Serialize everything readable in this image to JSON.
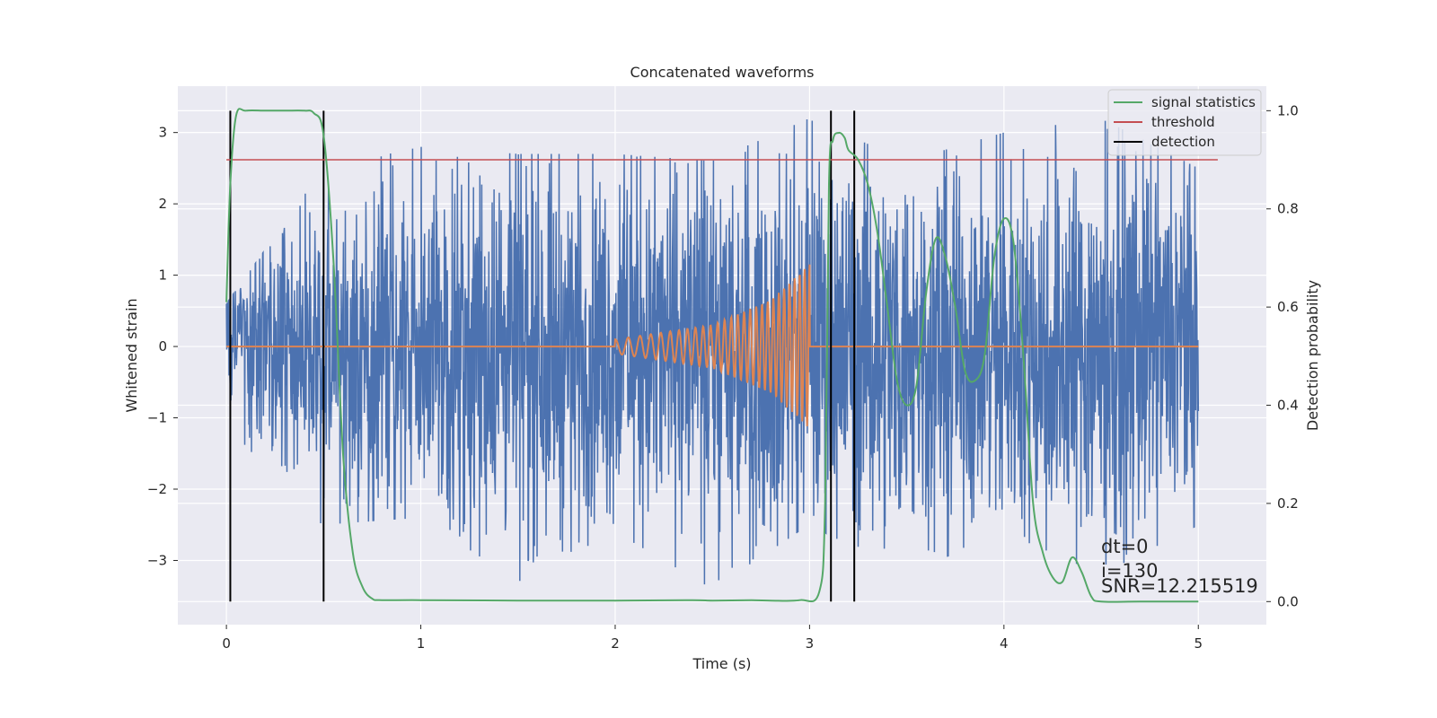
{
  "chart_data": {
    "type": "line",
    "title": "Concatenated waveforms",
    "xlabel": "Time (s)",
    "ylabel": "Whitened strain",
    "ylabel_right": "Detection probability",
    "xlim": [
      -0.25,
      5.35
    ],
    "ylim": [
      -3.9,
      3.65
    ],
    "ylim_right": [
      -0.047,
      1.05
    ],
    "xticks": [
      0,
      1,
      2,
      3,
      4,
      5
    ],
    "yticks": [
      -3,
      -2,
      -1,
      0,
      1,
      2,
      3
    ],
    "yticks_right": [
      0.0,
      0.2,
      0.4,
      0.6,
      0.8,
      1.0
    ],
    "xtick_labels": [
      "0",
      "1",
      "2",
      "3",
      "4",
      "5"
    ],
    "ytick_labels": [
      "−3",
      "−2",
      "−1",
      "0",
      "1",
      "2",
      "3"
    ],
    "ytick_right_labels": [
      "0.0",
      "0.2",
      "0.4",
      "0.6",
      "0.8",
      "1.0"
    ],
    "grid": true,
    "legend_position": "top-right",
    "legend": [
      "signal statistics",
      "threshold",
      "detection"
    ],
    "colors": {
      "noise": "#4c72b0",
      "waveform": "#dd8452",
      "signal_statistics": "#55a868",
      "threshold": "#c44e52",
      "detection": "#000000",
      "plot_bg": "#eaeaf2"
    },
    "series": [
      {
        "axis": "left",
        "kind": "noise",
        "x_range": [
          0,
          5
        ],
        "envelope": [
          {
            "x": 0.0,
            "min": -1.8,
            "max": 0.6
          },
          {
            "x": 0.5,
            "min": -2.5,
            "max": 2.5
          },
          {
            "x": 1.0,
            "min": -2.4,
            "max": 2.8
          },
          {
            "x": 1.5,
            "min": -3.3,
            "max": 2.7
          },
          {
            "x": 2.0,
            "min": -2.6,
            "max": 2.7
          },
          {
            "x": 2.5,
            "min": -3.4,
            "max": 2.6
          },
          {
            "x": 3.0,
            "min": -2.5,
            "max": 3.2
          },
          {
            "x": 3.5,
            "min": -3.2,
            "max": 2.6
          },
          {
            "x": 4.0,
            "min": -2.6,
            "max": 3.0
          },
          {
            "x": 4.5,
            "min": -3.2,
            "max": 3.2
          },
          {
            "x": 5.0,
            "min": -2.5,
            "max": 2.5
          }
        ]
      },
      {
        "axis": "left",
        "kind": "waveform",
        "x": [
          0,
          2.0,
          2.0,
          2.5,
          2.8,
          3.0,
          3.0,
          5.0
        ],
        "amplitude": [
          0,
          0,
          0.1,
          0.3,
          0.65,
          1.15,
          0,
          0
        ],
        "chirp_start": 2.0,
        "chirp_end": 3.0
      },
      {
        "name": "signal statistics",
        "axis": "right",
        "x": [
          0.0,
          0.02,
          0.05,
          0.1,
          0.2,
          0.3,
          0.4,
          0.45,
          0.5,
          0.55,
          0.6,
          0.65,
          0.7,
          0.75,
          0.8,
          1.0,
          1.5,
          2.0,
          2.4,
          2.5,
          2.7,
          2.8,
          2.95,
          3.05,
          3.08,
          3.1,
          3.12,
          3.15,
          3.18,
          3.2,
          3.25,
          3.3,
          3.35,
          3.4,
          3.45,
          3.5,
          3.55,
          3.6,
          3.65,
          3.7,
          3.75,
          3.8,
          3.85,
          3.9,
          3.95,
          4.0,
          4.05,
          4.1,
          4.15,
          4.2,
          4.25,
          4.3,
          4.35,
          4.4,
          4.45,
          4.5,
          4.7,
          5.0
        ],
        "y": [
          0.61,
          0.85,
          0.99,
          1.0,
          1.0,
          1.0,
          1.0,
          0.995,
          0.95,
          0.7,
          0.3,
          0.1,
          0.03,
          0.006,
          0.003,
          0.003,
          0.002,
          0.002,
          0.003,
          0.002,
          0.003,
          0.002,
          0.003,
          0.02,
          0.2,
          0.85,
          0.94,
          0.955,
          0.945,
          0.92,
          0.9,
          0.85,
          0.75,
          0.6,
          0.45,
          0.4,
          0.44,
          0.63,
          0.74,
          0.7,
          0.6,
          0.47,
          0.45,
          0.5,
          0.7,
          0.78,
          0.73,
          0.5,
          0.2,
          0.1,
          0.05,
          0.04,
          0.09,
          0.06,
          0.01,
          0.0,
          0.0,
          0.0
        ]
      },
      {
        "name": "threshold",
        "axis": "right",
        "x": [
          0,
          5.1
        ],
        "y": [
          0.9,
          0.9
        ]
      }
    ],
    "detections": [
      0.02,
      0.5,
      3.11,
      3.23
    ],
    "annotations": [
      "dt=0",
      "i=130",
      "SNR=12.215519"
    ]
  }
}
